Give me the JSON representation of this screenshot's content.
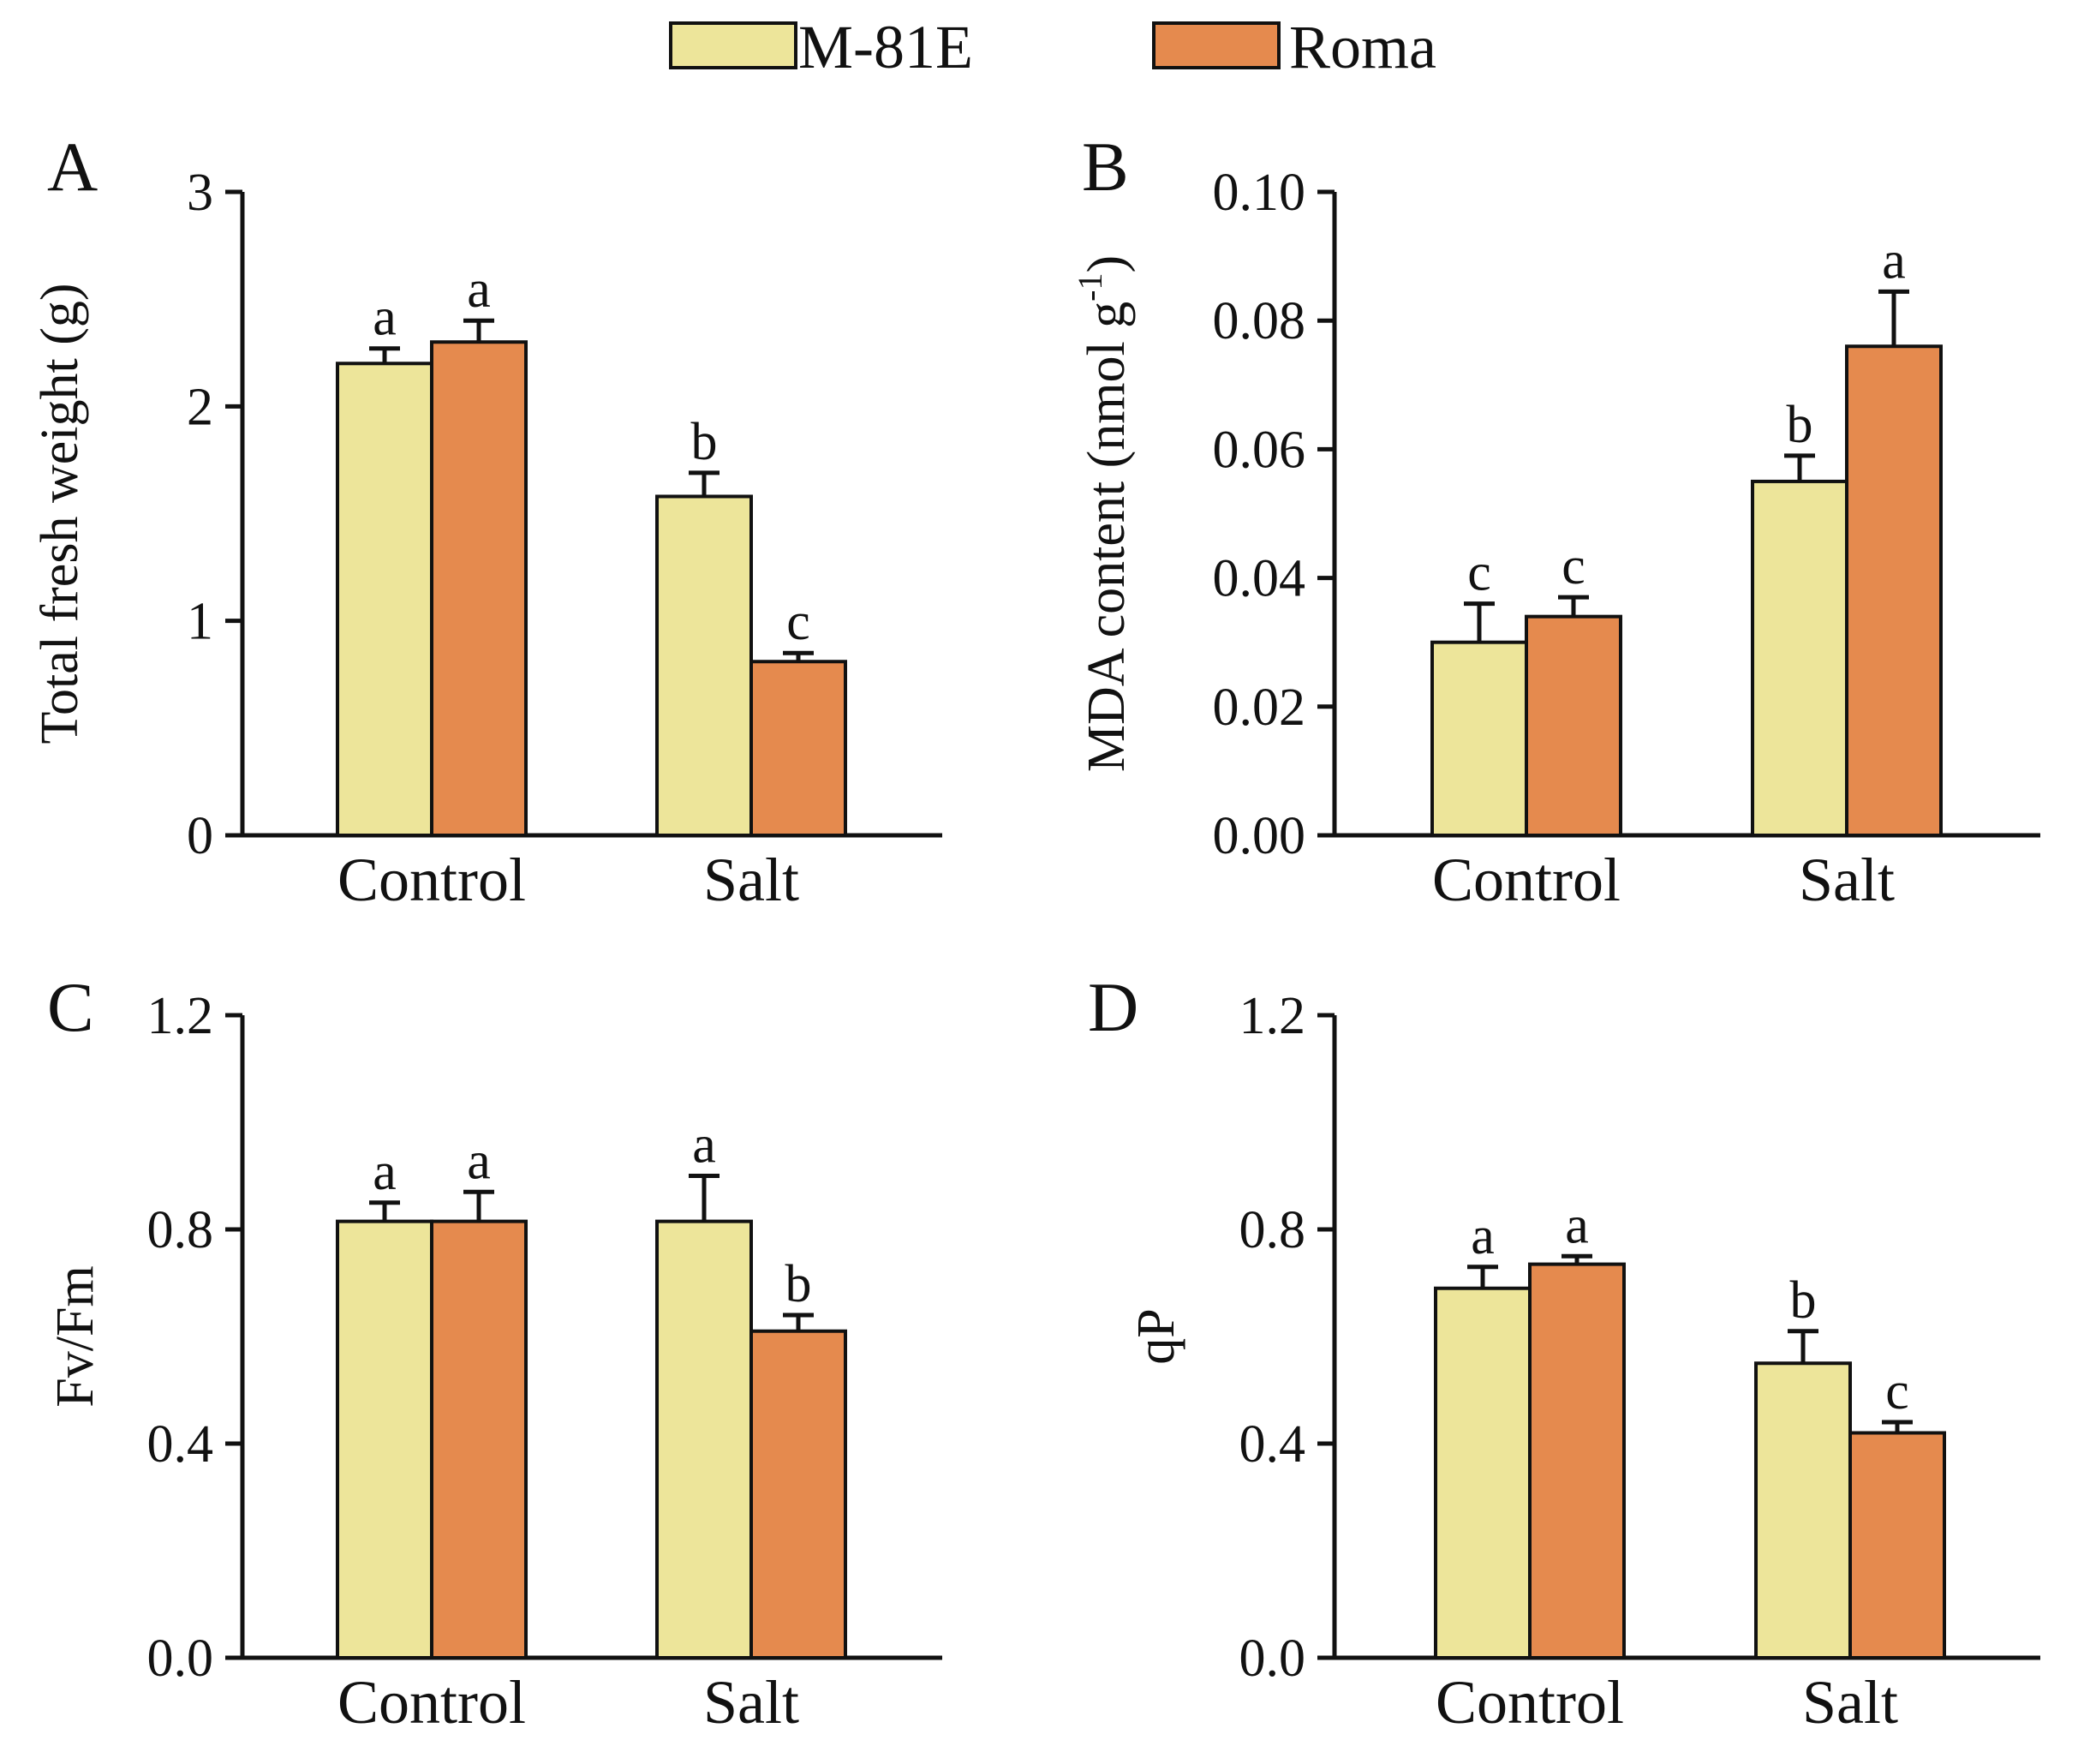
{
  "legend": {
    "items": [
      {
        "label": "M-81E",
        "color": "#EDE59A"
      },
      {
        "label": "Roma",
        "color": "#E58A4E"
      }
    ]
  },
  "chart_data": [
    {
      "panel": "A",
      "type": "bar",
      "categories": [
        "Control",
        "Salt"
      ],
      "ylabel": "Total fresh weight (g)",
      "ylim": [
        0,
        3
      ],
      "yticks": [
        0,
        1,
        2,
        3
      ],
      "ytick_labels": [
        "0",
        "1",
        "2",
        "3"
      ],
      "series": [
        {
          "name": "M-81E",
          "values": [
            2.2,
            1.58
          ],
          "errors": [
            0.07,
            0.11
          ],
          "letters": [
            "a",
            "b"
          ]
        },
        {
          "name": "Roma",
          "values": [
            2.3,
            0.81
          ],
          "errors": [
            0.1,
            0.04
          ],
          "letters": [
            "a",
            "c"
          ]
        }
      ]
    },
    {
      "panel": "B",
      "type": "bar",
      "categories": [
        "Control",
        "Salt"
      ],
      "ylabel": "MDA content (nmol g",
      "ylabel_sup": "-1",
      "ylabel_tail": ")",
      "ylim": [
        0,
        0.1
      ],
      "yticks": [
        0,
        0.02,
        0.04,
        0.06,
        0.08,
        0.1
      ],
      "ytick_labels": [
        "0.00",
        "0.02",
        "0.04",
        "0.06",
        "0.08",
        "0.10"
      ],
      "series": [
        {
          "name": "M-81E",
          "values": [
            0.03,
            0.055
          ],
          "errors": [
            0.006,
            0.004
          ],
          "letters": [
            "c",
            "b"
          ]
        },
        {
          "name": "Roma",
          "values": [
            0.034,
            0.076
          ],
          "errors": [
            0.003,
            0.0085
          ],
          "letters": [
            "c",
            "a"
          ]
        }
      ]
    },
    {
      "panel": "C",
      "type": "bar",
      "categories": [
        "Control",
        "Salt"
      ],
      "ylabel": "Fv/Fm",
      "ylim": [
        0,
        1.2
      ],
      "yticks": [
        0,
        0.4,
        0.8,
        1.2
      ],
      "ytick_labels": [
        "0.0",
        "0.4",
        "0.8",
        "1.2"
      ],
      "series": [
        {
          "name": "M-81E",
          "values": [
            0.815,
            0.815
          ],
          "errors": [
            0.035,
            0.085
          ],
          "letters": [
            "a",
            "a"
          ]
        },
        {
          "name": "Roma",
          "values": [
            0.815,
            0.61
          ],
          "errors": [
            0.055,
            0.03
          ],
          "letters": [
            "a",
            "b"
          ]
        }
      ]
    },
    {
      "panel": "D",
      "type": "bar",
      "categories": [
        "Control",
        "Salt"
      ],
      "ylabel": "qP",
      "ylim": [
        0,
        1.2
      ],
      "yticks": [
        0,
        0.4,
        0.8,
        1.2
      ],
      "ytick_labels": [
        "0.0",
        "0.4",
        "0.8",
        "1.2"
      ],
      "series": [
        {
          "name": "M-81E",
          "values": [
            0.69,
            0.55
          ],
          "errors": [
            0.04,
            0.06
          ],
          "letters": [
            "a",
            "b"
          ]
        },
        {
          "name": "Roma",
          "values": [
            0.735,
            0.42
          ],
          "errors": [
            0.015,
            0.02
          ],
          "letters": [
            "a",
            "c"
          ]
        }
      ]
    }
  ]
}
